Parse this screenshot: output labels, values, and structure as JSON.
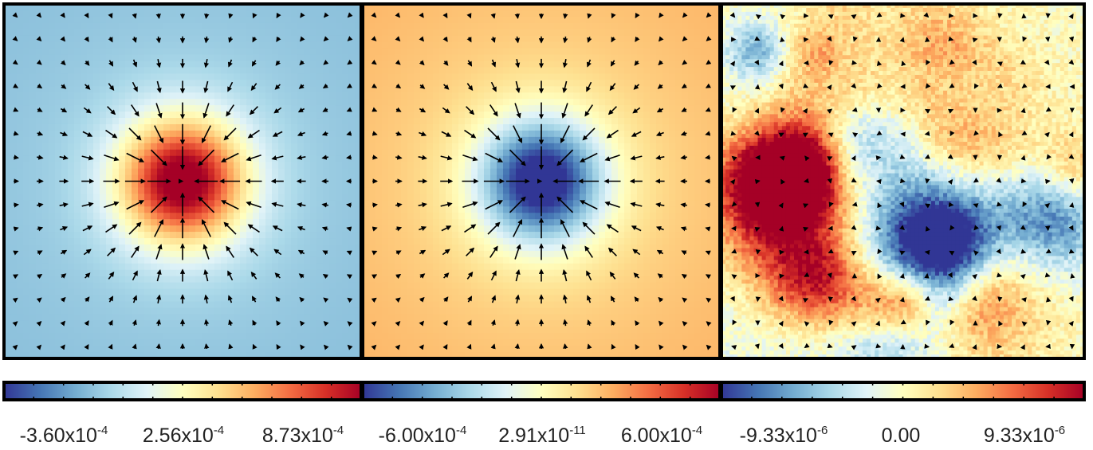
{
  "chart_data": [
    {
      "type": "heatmap",
      "title": "",
      "xlabel": "",
      "ylabel": "",
      "field": "positive-peak",
      "center": [
        0.5,
        0.5
      ],
      "vector_field": "inward",
      "colorbar": {
        "min": -0.00036,
        "max": 0.000873,
        "ticks": [
          {
            "mantissa": "-3.60",
            "exp": "-4",
            "value": -0.00036
          },
          {
            "mantissa": "2.56",
            "exp": "-4",
            "value": 0.000256
          },
          {
            "mantissa": "8.73",
            "exp": "-4",
            "value": 0.000873
          }
        ]
      }
    },
    {
      "type": "heatmap",
      "title": "",
      "xlabel": "",
      "ylabel": "",
      "field": "negative-peak",
      "center": [
        0.5,
        0.5
      ],
      "vector_field": "inward",
      "colorbar": {
        "min": -0.0006,
        "max": 0.0006,
        "ticks": [
          {
            "mantissa": "-6.00",
            "exp": "-4",
            "value": -0.0006
          },
          {
            "mantissa": "2.91",
            "exp": "-11",
            "value": 2.91e-11
          },
          {
            "mantissa": "6.00",
            "exp": "-4",
            "value": 0.0006
          }
        ]
      }
    },
    {
      "type": "heatmap",
      "title": "",
      "xlabel": "",
      "ylabel": "",
      "field": "noise",
      "vector_field": "random",
      "colorbar": {
        "min": -9.33e-06,
        "max": 9.33e-06,
        "ticks": [
          {
            "mantissa": "-9.33",
            "exp": "-6",
            "value": -9.33e-06
          },
          {
            "mantissa": "0.00",
            "exp": "",
            "value": 0
          },
          {
            "mantissa": "9.33",
            "exp": "-6",
            "value": 9.33e-06
          }
        ]
      }
    }
  ],
  "colormap": [
    "#313695",
    "#4575b4",
    "#74add1",
    "#abd9e9",
    "#e0f3f8",
    "#ffffbf",
    "#fee090",
    "#fdae61",
    "#f46d43",
    "#d73027",
    "#a50026"
  ]
}
